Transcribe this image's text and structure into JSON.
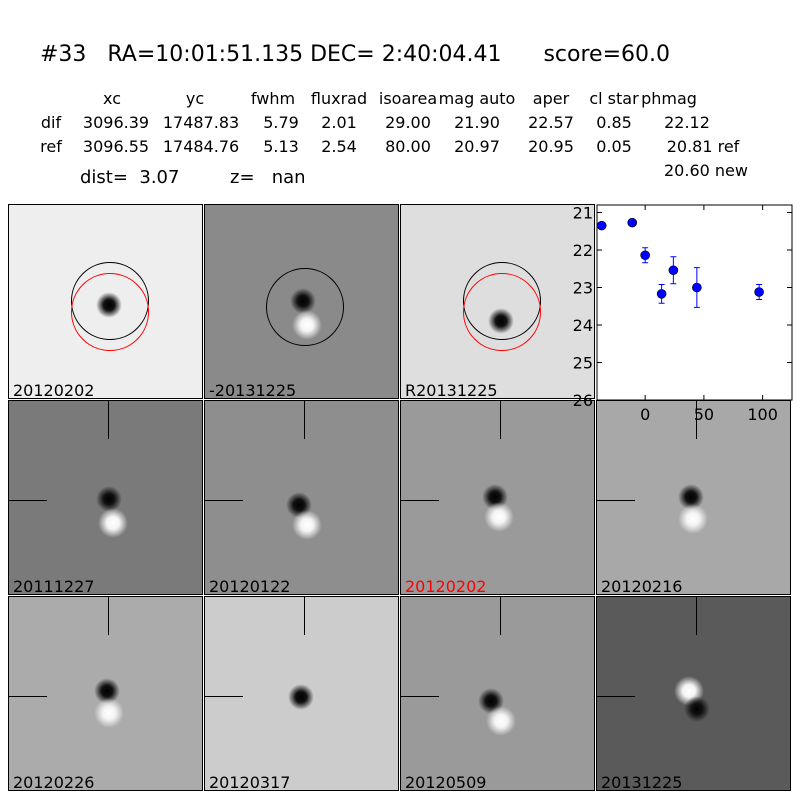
{
  "header": {
    "title": "#33   RA=10:01:51.135 DEC= 2:40:04.41      score=60.0",
    "columns": [
      "xc",
      "yc",
      "fwhm",
      "fluxrad",
      "isoarea",
      "mag auto",
      "aper",
      "cl star",
      "phmag"
    ],
    "rows": [
      {
        "name": "dif",
        "values": [
          "3096.39",
          "17487.83",
          "5.79",
          "2.01",
          "29.00",
          "21.90",
          "22.57",
          "0.85",
          "22.12"
        ],
        "suffix": ""
      },
      {
        "name": "ref",
        "values": [
          "3096.55",
          "17484.76",
          "5.13",
          "2.54",
          "80.00",
          "20.97",
          "20.95",
          "0.05",
          "20.81"
        ],
        "suffix": "ref"
      }
    ],
    "new_phmag": "20.60 new",
    "dist": "dist=  3.07",
    "z": "z=   nan"
  },
  "panels": [
    {
      "label": "20120202",
      "bg": "#eeeeee"
    },
    {
      "label": "-20131225",
      "bg": "#8a8a8a"
    },
    {
      "label": "R20131225",
      "bg": "#dedede"
    },
    {
      "label": "20111227",
      "bg": "#7a7a7a"
    },
    {
      "label": "20120122",
      "bg": "#8e8e8e"
    },
    {
      "label": "20120202",
      "bg": "#9a9a9a",
      "label_color": "#ff0000"
    },
    {
      "label": "20120216",
      "bg": "#a8a8a8"
    },
    {
      "label": "20120226",
      "bg": "#ababab"
    },
    {
      "label": "20120317",
      "bg": "#cccccc"
    },
    {
      "label": "20120509",
      "bg": "#9a9a9a"
    },
    {
      "label": "20131225",
      "bg": "#5a5a5a"
    }
  ],
  "chart_data": {
    "type": "scatter",
    "x": [
      -37,
      -11,
      0,
      14,
      24,
      44,
      97
    ],
    "y": [
      21.35,
      21.27,
      22.14,
      23.17,
      22.54,
      23.0,
      23.12
    ],
    "yerr": [
      0.05,
      0.05,
      0.2,
      0.25,
      0.36,
      0.53,
      0.2
    ],
    "xlim": [
      -41,
      125
    ],
    "ylim": [
      26,
      20.8
    ],
    "y_inverted": true,
    "xticks": [
      "0",
      "50",
      "100"
    ],
    "xtick_values": [
      0,
      50,
      100
    ],
    "yticks": [
      "21",
      "22",
      "23",
      "24",
      "25",
      "26"
    ],
    "ytick_values": [
      21,
      22,
      23,
      24,
      25,
      26
    ],
    "color": "#0000ff",
    "grid": false
  }
}
